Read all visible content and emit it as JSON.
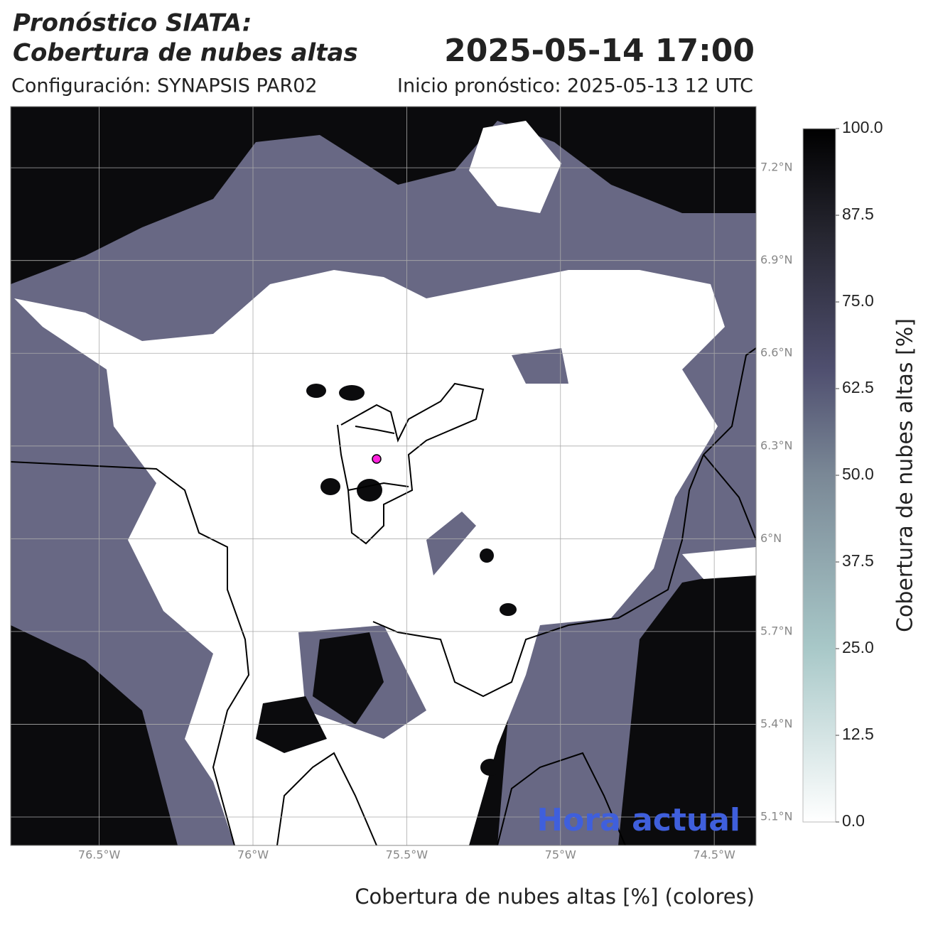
{
  "title_lines": [
    "Pronóstico SIATA:",
    "Cobertura de nubes altas"
  ],
  "valid_time": "2025-05-14 17:00",
  "configuration": "Configuración: SYNAPSIS PAR02",
  "forecast_start": "Inicio pronóstico: 2025-05-13 12 UTC",
  "map": {
    "xlim": [
      -76.788,
      -74.364
    ],
    "ylim": [
      5.008,
      7.398
    ],
    "grid": true,
    "xticks": [
      {
        "value": -76.5,
        "label": "76.5°W"
      },
      {
        "value": -76,
        "label": "76°W"
      },
      {
        "value": -75.5,
        "label": "75.5°W"
      },
      {
        "value": -75,
        "label": "75°W"
      },
      {
        "value": -74.5,
        "label": "74.5°W"
      }
    ],
    "yticks": [
      {
        "value": 5.1,
        "label": "5.1°N"
      },
      {
        "value": 5.4,
        "label": "5.4°N"
      },
      {
        "value": 5.7,
        "label": "5.7°N"
      },
      {
        "value": 6,
        "label": "6°N"
      },
      {
        "value": 6.3,
        "label": "6.3°N"
      },
      {
        "value": 6.6,
        "label": "6.6°N"
      },
      {
        "value": 6.9,
        "label": "6.9°N"
      },
      {
        "value": 7.2,
        "label": "7.2°N"
      }
    ],
    "overlay_text": "Hora actual"
  },
  "colorbar": {
    "label": "Cobertura de nubes altas [%]",
    "lim": [
      0,
      100
    ],
    "ticks": [
      {
        "value": 0,
        "label": "0.0"
      },
      12.5,
      {
        "value": 25,
        "label": "25.0"
      },
      37.5,
      {
        "value": 50,
        "label": "50.0"
      },
      62.5,
      {
        "value": 75,
        "label": "75.0"
      },
      87.5,
      {
        "value": 100,
        "label": "100.0"
      }
    ]
  },
  "footer_label": "Cobertura de nubes altas [%] (colores)"
}
